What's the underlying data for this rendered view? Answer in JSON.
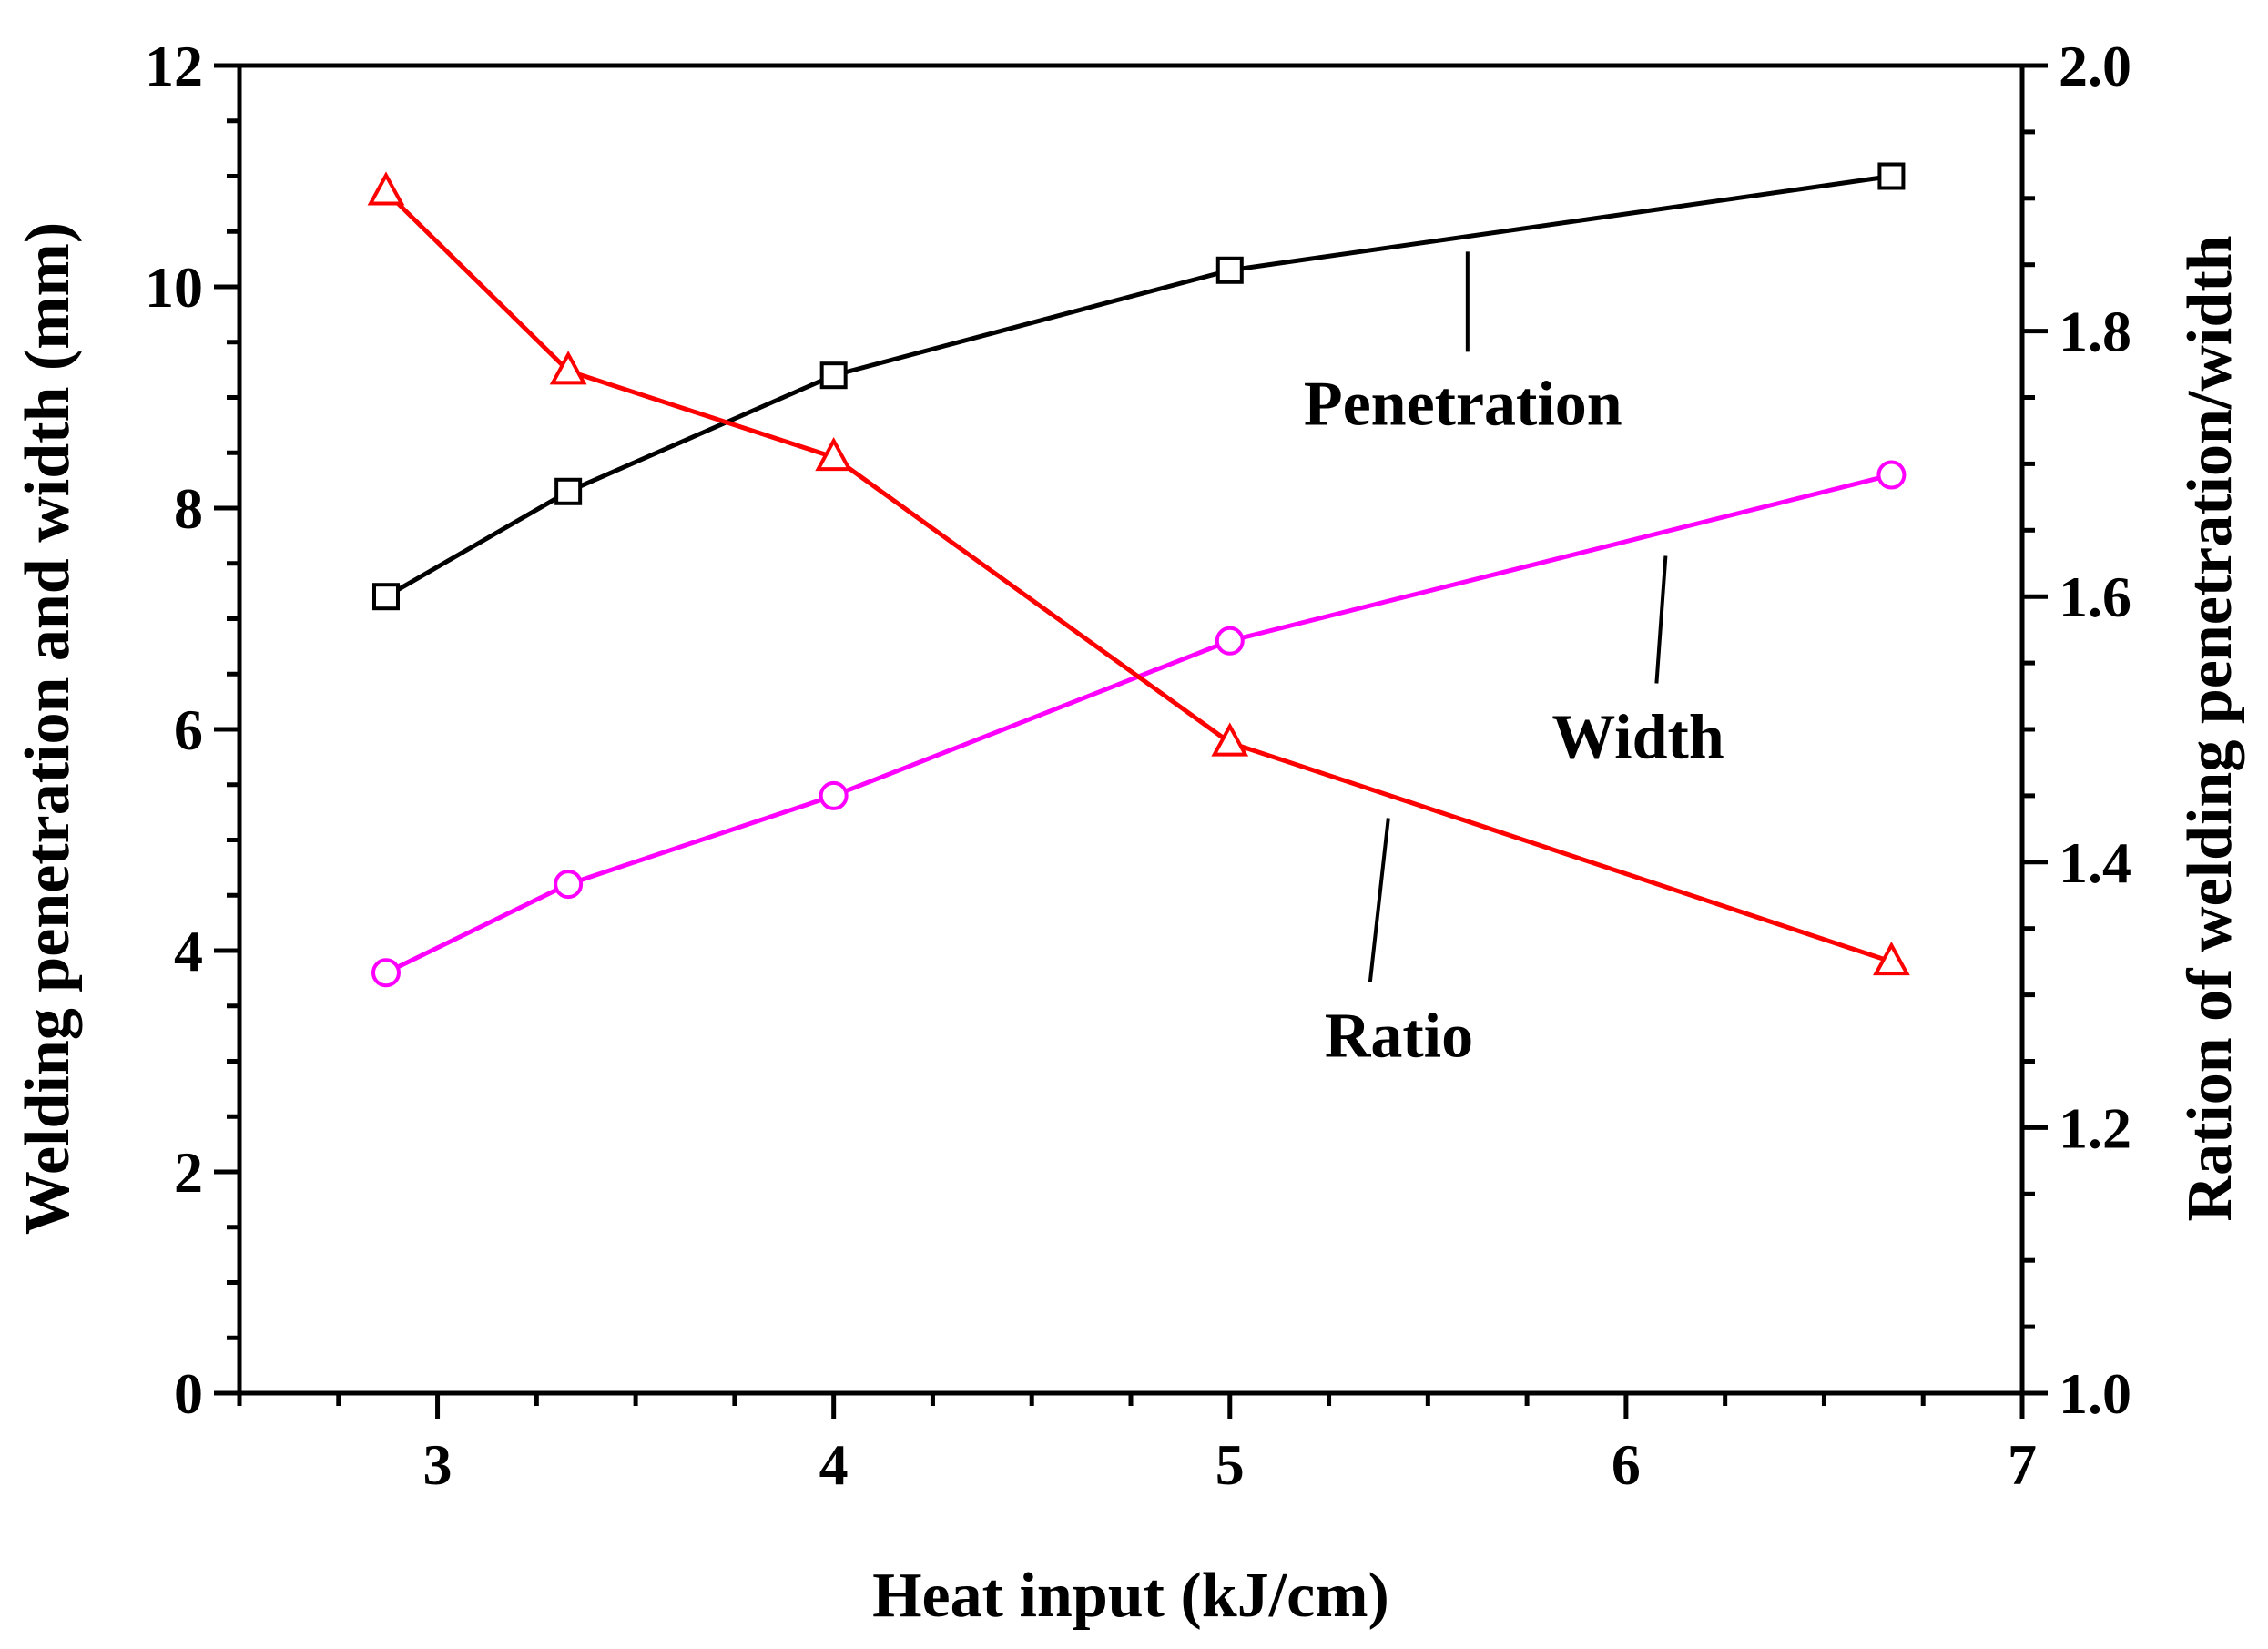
{
  "chart_data": {
    "type": "line",
    "title": "",
    "xlabel": "Heat input (kJ/cm)",
    "ylabel_left": "Welding penetration and width (mm)",
    "ylabel_right": "Ration of welding penetration/width",
    "xlim": [
      2.5,
      7
    ],
    "ylim_left": [
      0,
      12
    ],
    "ylim_right": [
      1.0,
      2.0
    ],
    "x_ticks": [
      3,
      4,
      5,
      6,
      7
    ],
    "y_ticks_left": [
      0,
      2,
      4,
      6,
      8,
      10,
      12
    ],
    "y_ticks_right": [
      "1.0",
      "1.2",
      "1.4",
      "1.6",
      "1.8",
      "2.0"
    ],
    "grid": false,
    "series": [
      {
        "name": "Penetration",
        "axis": "left",
        "color": "#000000",
        "marker": "square",
        "x": [
          2.87,
          3.33,
          4.0,
          5.0,
          6.67
        ],
        "values": [
          7.2,
          8.15,
          9.2,
          10.15,
          11.0
        ]
      },
      {
        "name": "Width",
        "axis": "left",
        "color": "#ff00ff",
        "marker": "circle",
        "x": [
          2.87,
          3.33,
          4.0,
          5.0,
          6.67
        ],
        "values": [
          3.8,
          4.6,
          5.4,
          6.8,
          8.3
        ]
      },
      {
        "name": "Ratio",
        "axis": "right",
        "color": "#ff0000",
        "marker": "triangle",
        "x": [
          2.87,
          3.33,
          4.0,
          5.0,
          6.67
        ],
        "values": [
          1.905,
          1.77,
          1.705,
          1.49,
          1.325
        ]
      }
    ],
    "annotations": [
      {
        "text": "Penetration",
        "series": "Penetration",
        "data_x": 5.6,
        "data_y": 10.4
      },
      {
        "text": "Width",
        "series": "Width",
        "data_x": 6.1,
        "data_y": 7.65
      },
      {
        "text": "Ratio",
        "series": "Ratio",
        "data_x": 5.4,
        "data_y": 1.44
      }
    ]
  }
}
